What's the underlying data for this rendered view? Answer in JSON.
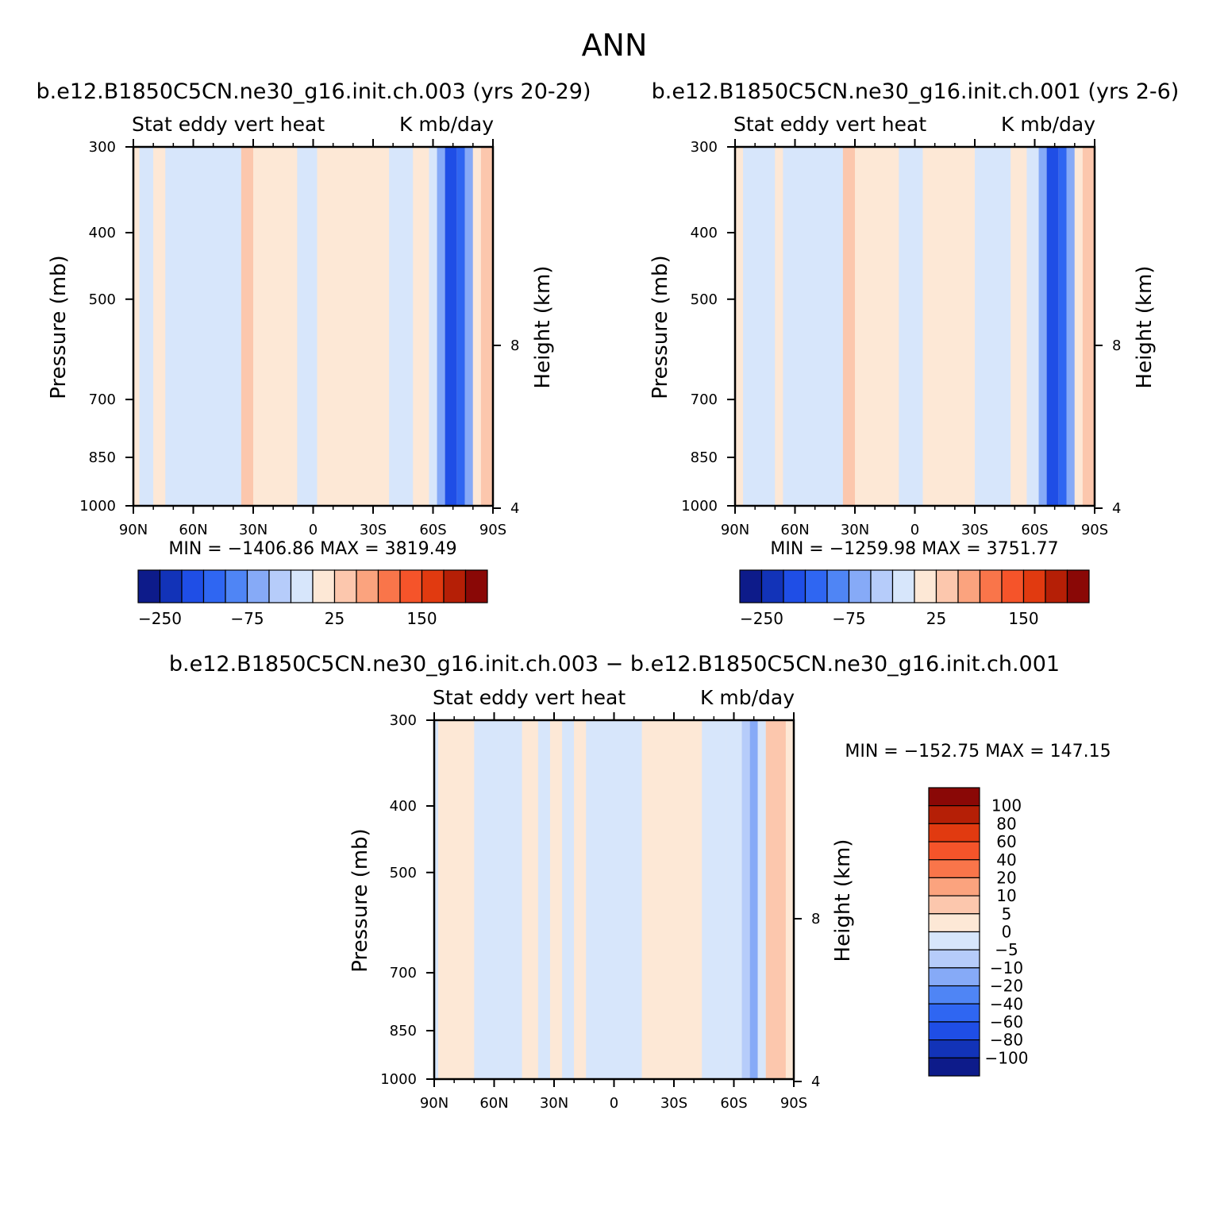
{
  "figure": {
    "title": "ANN"
  },
  "palette": {
    "colors13": [
      "#0d1b8a",
      "#1233b8",
      "#1f4ee6",
      "#2f66f2",
      "#4f85f5",
      "#86aaf7",
      "#b6ccfa",
      "#d7e6fb",
      "#fde8d6",
      "#fcc7ad",
      "#fba37e",
      "#f9754a",
      "#f5542a",
      "#e13a10",
      "#b51f06",
      "#8a0806"
    ],
    "cb_main_colors": [
      "#0d1b8a",
      "#1233b8",
      "#1f4ee6",
      "#2f66f2",
      "#4f85f5",
      "#86aaf7",
      "#b6ccfa",
      "#d7e6fb",
      "#fde8d6",
      "#fcc7ad",
      "#fba37e",
      "#f9754a",
      "#f5542a",
      "#e13a10",
      "#b51f06",
      "#8a0806"
    ],
    "cb_diff_colors": [
      "#0d1b8a",
      "#1233b8",
      "#1f4ee6",
      "#2f66f2",
      "#4f85f5",
      "#86aaf7",
      "#b6ccfa",
      "#d7e6fb",
      "#fde8d6",
      "#fcc7ad",
      "#fba37e",
      "#f9754a",
      "#f5542a",
      "#e13a10",
      "#b51f06",
      "#8a0806"
    ]
  },
  "panels": [
    {
      "case_title": "b.e12.B1850C5CN.ne30_g16.init.ch.003 (yrs 20-29)",
      "left_label": "Stat eddy vert heat",
      "right_label": "K mb/day",
      "ylabel": "Pressure (mb)",
      "ylabel_right": "Height (km)",
      "stats": "MIN = −1406.86   MAX = 3819.49"
    },
    {
      "case_title": "b.e12.B1850C5CN.ne30_g16.init.ch.001 (yrs 2-6)",
      "left_label": "Stat eddy vert heat",
      "right_label": "K mb/day",
      "ylabel": "Pressure (mb)",
      "ylabel_right": "Height (km)",
      "stats": "MIN = −1259.98   MAX = 3751.77"
    },
    {
      "case_title": "b.e12.B1850C5CN.ne30_g16.init.ch.003 − b.e12.B1850C5CN.ne30_g16.init.ch.001",
      "left_label": "Stat eddy vert heat",
      "right_label": "K mb/day",
      "ylabel": "Pressure (mb)",
      "ylabel_right": "Height (km)",
      "stats": "MIN = −152.75   MAX = 147.15"
    }
  ],
  "colorbars": {
    "main_labels": [
      "−250",
      "−75",
      "25",
      "150"
    ],
    "diff_labels": [
      "100",
      "80",
      "60",
      "40",
      "20",
      "10",
      "5",
      "0",
      "−5",
      "−10",
      "−20",
      "−40",
      "−60",
      "−80",
      "−100"
    ]
  },
  "chart_data": [
    {
      "type": "heatmap",
      "title": "b.e12.B1850C5CN.ne30_g16.init.ch.003 (yrs 20-29)",
      "variable": "Stat eddy vert heat",
      "units": "K mb/day",
      "xlabel": "",
      "ylabel": "Pressure (mb)",
      "ylabel_right": "Height (km)",
      "x_ticks": [
        "90N",
        "60N",
        "30N",
        "0",
        "30S",
        "60S",
        "90S"
      ],
      "y_ticks": [
        300,
        400,
        500,
        700,
        850,
        1000
      ],
      "y_right_ticks": [
        8,
        4
      ],
      "y_scale": "log",
      "min": -1406.86,
      "max": 3819.49,
      "colorbar_labels": [
        "−250",
        "−75",
        "25",
        "150"
      ],
      "columns": [
        {
          "lat_from": 90,
          "lat_to": 87,
          "level": 8
        },
        {
          "lat_from": 87,
          "lat_to": 80,
          "level": 7
        },
        {
          "lat_from": 80,
          "lat_to": 74,
          "level": 8
        },
        {
          "lat_from": 74,
          "lat_to": 36,
          "level": 7
        },
        {
          "lat_from": 36,
          "lat_to": 30,
          "level": 9
        },
        {
          "lat_from": 30,
          "lat_to": 26,
          "level": 8
        },
        {
          "lat_from": 26,
          "lat_to": 8,
          "level": 8
        },
        {
          "lat_from": 8,
          "lat_to": -2,
          "level": 7
        },
        {
          "lat_from": -2,
          "lat_to": -16,
          "level": 8
        },
        {
          "lat_from": -16,
          "lat_to": -38,
          "level": 8
        },
        {
          "lat_from": -38,
          "lat_to": -50,
          "level": 7
        },
        {
          "lat_from": -50,
          "lat_to": -58,
          "level": 8
        },
        {
          "lat_from": -58,
          "lat_to": -62,
          "level": 7
        },
        {
          "lat_from": -62,
          "lat_to": -66,
          "level": 5
        },
        {
          "lat_from": -66,
          "lat_to": -72,
          "level": 2
        },
        {
          "lat_from": -72,
          "lat_to": -76,
          "level": 3
        },
        {
          "lat_from": -76,
          "lat_to": -80,
          "level": 5
        },
        {
          "lat_from": -80,
          "lat_to": -84,
          "level": 8
        },
        {
          "lat_from": -84,
          "lat_to": -90,
          "level": 9
        }
      ]
    },
    {
      "type": "heatmap",
      "title": "b.e12.B1850C5CN.ne30_g16.init.ch.001 (yrs 2-6)",
      "variable": "Stat eddy vert heat",
      "units": "K mb/day",
      "xlabel": "",
      "ylabel": "Pressure (mb)",
      "ylabel_right": "Height (km)",
      "x_ticks": [
        "90N",
        "60N",
        "30N",
        "0",
        "30S",
        "60S",
        "90S"
      ],
      "y_ticks": [
        300,
        400,
        500,
        700,
        850,
        1000
      ],
      "y_right_ticks": [
        8,
        4
      ],
      "y_scale": "log",
      "min": -1259.98,
      "max": 3751.77,
      "colorbar_labels": [
        "−250",
        "−75",
        "25",
        "150"
      ],
      "columns": [
        {
          "lat_from": 90,
          "lat_to": 86,
          "level": 8
        },
        {
          "lat_from": 86,
          "lat_to": 70,
          "level": 7
        },
        {
          "lat_from": 70,
          "lat_to": 66,
          "level": 8
        },
        {
          "lat_from": 66,
          "lat_to": 36,
          "level": 7
        },
        {
          "lat_from": 36,
          "lat_to": 30,
          "level": 9
        },
        {
          "lat_from": 30,
          "lat_to": 8,
          "level": 8
        },
        {
          "lat_from": 8,
          "lat_to": -4,
          "level": 7
        },
        {
          "lat_from": -4,
          "lat_to": -14,
          "level": 8
        },
        {
          "lat_from": -14,
          "lat_to": -30,
          "level": 8
        },
        {
          "lat_from": -30,
          "lat_to": -48,
          "level": 7
        },
        {
          "lat_from": -48,
          "lat_to": -56,
          "level": 8
        },
        {
          "lat_from": -56,
          "lat_to": -62,
          "level": 7
        },
        {
          "lat_from": -62,
          "lat_to": -66,
          "level": 5
        },
        {
          "lat_from": -66,
          "lat_to": -72,
          "level": 2
        },
        {
          "lat_from": -72,
          "lat_to": -76,
          "level": 3
        },
        {
          "lat_from": -76,
          "lat_to": -80,
          "level": 5
        },
        {
          "lat_from": -80,
          "lat_to": -84,
          "level": 8
        },
        {
          "lat_from": -84,
          "lat_to": -90,
          "level": 9
        }
      ]
    },
    {
      "type": "heatmap",
      "title": "b.e12.B1850C5CN.ne30_g16.init.ch.003 − b.e12.B1850C5CN.ne30_g16.init.ch.001",
      "variable": "Stat eddy vert heat",
      "units": "K mb/day",
      "xlabel": "",
      "ylabel": "Pressure (mb)",
      "ylabel_right": "Height (km)",
      "x_ticks": [
        "90N",
        "60N",
        "30N",
        "0",
        "30S",
        "60S",
        "90S"
      ],
      "y_ticks": [
        300,
        400,
        500,
        700,
        850,
        1000
      ],
      "y_right_ticks": [
        8,
        4
      ],
      "y_scale": "log",
      "min": -152.75,
      "max": 147.15,
      "colorbar_labels": [
        "100",
        "80",
        "60",
        "40",
        "20",
        "10",
        "5",
        "0",
        "−5",
        "−10",
        "−20",
        "−40",
        "−60",
        "−80",
        "−100"
      ],
      "columns": [
        {
          "lat_from": 90,
          "lat_to": 88,
          "level": 7
        },
        {
          "lat_from": 88,
          "lat_to": 70,
          "level": 8
        },
        {
          "lat_from": 70,
          "lat_to": 58,
          "level": 7
        },
        {
          "lat_from": 58,
          "lat_to": 46,
          "level": 7
        },
        {
          "lat_from": 46,
          "lat_to": 38,
          "level": 8
        },
        {
          "lat_from": 38,
          "lat_to": 32,
          "level": 7
        },
        {
          "lat_from": 32,
          "lat_to": 26,
          "level": 8
        },
        {
          "lat_from": 26,
          "lat_to": 20,
          "level": 7
        },
        {
          "lat_from": 20,
          "lat_to": 14,
          "level": 8
        },
        {
          "lat_from": 14,
          "lat_to": -14,
          "level": 7
        },
        {
          "lat_from": -14,
          "lat_to": -44,
          "level": 8
        },
        {
          "lat_from": -44,
          "lat_to": -56,
          "level": 7
        },
        {
          "lat_from": -56,
          "lat_to": -64,
          "level": 7
        },
        {
          "lat_from": -64,
          "lat_to": -68,
          "level": 6
        },
        {
          "lat_from": -68,
          "lat_to": -72,
          "level": 5
        },
        {
          "lat_from": -72,
          "lat_to": -76,
          "level": 7
        },
        {
          "lat_from": -76,
          "lat_to": -86,
          "level": 9
        },
        {
          "lat_from": -86,
          "lat_to": -90,
          "level": 8
        }
      ]
    }
  ]
}
